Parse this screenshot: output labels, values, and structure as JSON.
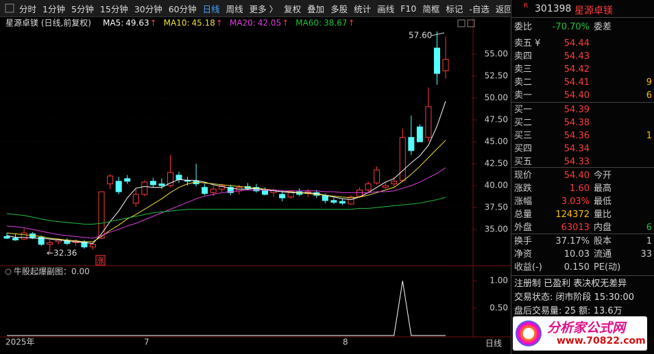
{
  "toolbar": {
    "items": [
      "分时",
      "1分钟",
      "5分钟",
      "15分钟",
      "30分钟",
      "60分钟",
      "日线",
      "周线",
      "更多 〉",
      "复权",
      "叠加",
      "多股",
      "统计",
      "画线",
      "F10",
      "简框",
      "标记",
      "-自选",
      "返回"
    ],
    "active": 6
  },
  "main_chart": {
    "title": "星源卓镁 (日线,前复权)",
    "ma": [
      {
        "label": "MA5:",
        "value": "49.63",
        "arrow": "↑",
        "color": "#ffffff",
        "values": [
          34.3,
          34.1,
          34.1,
          34.0,
          34.0,
          33.9,
          33.8,
          33.7,
          33.6,
          33.5,
          33.4,
          34.5,
          35.9,
          37.1,
          38.6,
          39.7,
          39.9,
          39.8,
          39.8,
          40.3,
          40.7,
          40.6,
          40.6,
          40.4,
          40.1,
          39.9,
          39.7,
          39.6,
          39.6,
          39.7,
          39.5,
          39.4,
          39.3,
          39.2,
          39.2,
          39.2,
          39.1,
          38.9,
          38.7,
          38.5,
          38.4,
          38.7,
          39.2,
          39.8,
          40.4,
          40.8,
          41.7,
          42.6,
          43.4,
          44.6,
          46.8,
          49.63
        ]
      },
      {
        "label": "MA10:",
        "value": "45.18",
        "arrow": "↑",
        "color": "#f0e040",
        "values": [
          34.6,
          34.5,
          34.4,
          34.3,
          34.2,
          34.0,
          33.9,
          33.8,
          33.7,
          33.6,
          33.6,
          34.2,
          34.9,
          35.5,
          36.2,
          36.7,
          37.3,
          37.9,
          38.5,
          39.2,
          39.8,
          40.2,
          40.4,
          40.3,
          40.2,
          40.1,
          40.0,
          39.9,
          39.8,
          39.7,
          39.6,
          39.5,
          39.4,
          39.3,
          39.2,
          39.1,
          39.0,
          38.9,
          38.8,
          38.7,
          38.6,
          38.7,
          38.9,
          39.2,
          39.5,
          39.8,
          40.5,
          41.3,
          42.2,
          43.2,
          44.2,
          45.18
        ]
      },
      {
        "label": "MA20:",
        "value": "42.05",
        "arrow": "↑",
        "color": "#e040e0",
        "values": [
          35.4,
          35.3,
          35.2,
          35.0,
          34.8,
          34.6,
          34.4,
          34.3,
          34.2,
          34.1,
          34.0,
          34.3,
          34.7,
          35.0,
          35.4,
          35.7,
          36.1,
          36.5,
          36.9,
          37.3,
          37.7,
          38.1,
          38.5,
          38.8,
          39.0,
          39.2,
          39.3,
          39.4,
          39.5,
          39.5,
          39.5,
          39.5,
          39.4,
          39.4,
          39.4,
          39.4,
          39.4,
          39.3,
          39.3,
          39.2,
          39.2,
          39.2,
          39.2,
          39.3,
          39.3,
          39.4,
          39.7,
          40.0,
          40.4,
          40.9,
          41.4,
          42.05
        ]
      },
      {
        "label": "MA60:",
        "value": "38.67",
        "arrow": "↑",
        "color": "#20c040",
        "values": [
          36.8,
          36.7,
          36.6,
          36.4,
          36.2,
          36.0,
          35.9,
          35.8,
          35.7,
          35.6,
          35.6,
          35.7,
          35.9,
          36.1,
          36.3,
          36.5,
          36.7,
          36.9,
          37.0,
          37.1,
          37.2,
          37.3,
          37.3,
          37.3,
          37.3,
          37.3,
          37.3,
          37.3,
          37.3,
          37.3,
          37.3,
          37.3,
          37.3,
          37.3,
          37.3,
          37.3,
          37.3,
          37.3,
          37.3,
          37.3,
          37.3,
          37.4,
          37.4,
          37.5,
          37.6,
          37.7,
          37.8,
          37.9,
          38.0,
          38.2,
          38.4,
          38.67
        ]
      }
    ],
    "candles": [
      [
        34.2,
        34.6,
        33.9,
        34.0
      ],
      [
        34.0,
        34.5,
        33.7,
        33.8
      ],
      [
        33.9,
        35.1,
        33.8,
        34.6
      ],
      [
        34.5,
        34.7,
        33.9,
        34.1
      ],
      [
        34.1,
        34.3,
        33.1,
        33.3
      ],
      [
        33.3,
        33.8,
        32.36,
        33.5
      ],
      [
        33.6,
        34.0,
        33.3,
        33.8
      ],
      [
        33.7,
        34.0,
        33.2,
        33.4
      ],
      [
        33.5,
        33.9,
        33.1,
        33.7
      ],
      [
        33.6,
        33.8,
        32.8,
        33.0
      ],
      [
        33.0,
        33.5,
        32.7,
        33.3
      ],
      [
        34.0,
        39.3,
        33.9,
        39.3
      ],
      [
        40.2,
        41.3,
        39.6,
        41.1
      ],
      [
        40.5,
        41.0,
        39.0,
        39.3
      ],
      [
        40.8,
        41.2,
        40.2,
        40.5
      ],
      [
        38.0,
        39.6,
        37.6,
        39.0
      ],
      [
        39.0,
        40.6,
        38.8,
        40.4
      ],
      [
        40.5,
        40.9,
        39.8,
        40.1
      ],
      [
        40.2,
        40.8,
        39.6,
        40.0
      ],
      [
        40.0,
        43.5,
        39.8,
        41.5
      ],
      [
        41.2,
        41.6,
        40.3,
        40.7
      ],
      [
        40.6,
        41.0,
        40.0,
        40.5
      ],
      [
        40.5,
        42.5,
        39.9,
        40.2
      ],
      [
        39.8,
        40.2,
        38.9,
        39.1
      ],
      [
        39.2,
        40.0,
        38.8,
        39.6
      ],
      [
        39.6,
        40.2,
        39.3,
        40.0
      ],
      [
        39.8,
        40.1,
        38.9,
        39.2
      ],
      [
        39.4,
        40.1,
        39.0,
        39.8
      ],
      [
        39.9,
        40.3,
        39.5,
        39.7
      ],
      [
        39.8,
        40.2,
        39.2,
        39.4
      ],
      [
        39.4,
        39.8,
        38.9,
        39.0
      ],
      [
        39.2,
        39.7,
        38.7,
        39.5
      ],
      [
        39.0,
        39.4,
        38.2,
        38.6
      ],
      [
        38.7,
        39.5,
        38.5,
        39.3
      ],
      [
        39.3,
        39.7,
        38.8,
        39.0
      ],
      [
        39.1,
        39.6,
        38.7,
        39.3
      ],
      [
        39.2,
        39.5,
        38.6,
        38.9
      ],
      [
        38.9,
        39.1,
        38.0,
        38.3
      ],
      [
        38.3,
        38.6,
        37.9,
        38.1
      ],
      [
        38.2,
        38.5,
        37.8,
        38.0
      ],
      [
        37.9,
        38.9,
        37.8,
        38.7
      ],
      [
        38.8,
        39.8,
        38.6,
        39.5
      ],
      [
        39.5,
        40.5,
        39.2,
        40.2
      ],
      [
        40.3,
        42.2,
        40.1,
        41.8
      ],
      [
        39.8,
        40.4,
        39.6,
        40.0
      ],
      [
        40.2,
        41.0,
        39.9,
        40.5
      ],
      [
        40.6,
        46.5,
        40.4,
        45.5
      ],
      [
        45.5,
        48.0,
        43.5,
        44.0
      ],
      [
        46.7,
        47.0,
        45.0,
        45.0
      ],
      [
        45.5,
        51.2,
        45.0,
        49.0
      ],
      [
        55.7,
        57.6,
        51.5,
        52.8
      ],
      [
        53.1,
        57.0,
        52.2,
        54.4
      ]
    ],
    "ylim": [
      31.1,
      57.9
    ],
    "yticks": [
      {
        "value": 35,
        "label": "35.00"
      },
      {
        "value": 37.5,
        "label": "37.50"
      },
      {
        "value": 40,
        "label": "40.00"
      },
      {
        "value": 42.5,
        "label": "42.50"
      },
      {
        "value": 45,
        "label": "45.00"
      },
      {
        "value": 47.5,
        "label": "47.50"
      },
      {
        "value": 50,
        "label": "50.00"
      },
      {
        "value": 52.5,
        "label": "52.50"
      },
      {
        "value": 55,
        "label": "55.00"
      }
    ],
    "high_label": {
      "value": 57.6,
      "label": "57.60"
    },
    "low_label": {
      "value": 32.36,
      "label": "←32.36"
    },
    "limit_mark": "涨"
  },
  "sub_chart": {
    "title": "牛股起爆副图：0.00",
    "values": [
      0,
      0,
      0,
      0,
      0,
      0,
      0,
      0,
      0,
      0,
      0,
      0,
      0,
      0,
      0,
      0,
      0,
      0,
      0,
      0,
      0,
      0,
      0,
      0,
      0,
      0,
      0,
      0,
      0,
      0,
      0,
      0,
      0,
      0,
      0,
      0,
      0,
      0,
      0,
      0,
      0,
      0,
      0,
      0,
      0,
      0,
      1,
      0,
      0,
      0,
      0,
      0
    ],
    "ylim": [
      0,
      1.19
    ],
    "yticks": [
      {
        "value": 1,
        "label": "1.00"
      },
      {
        "value": 0.5,
        "label": "0.50"
      }
    ]
  },
  "x_axis": {
    "labels": [
      "2025年",
      "7",
      "8"
    ],
    "period": "日线"
  },
  "quote_panel": {
    "badge": "R",
    "code": "301398",
    "name": "星源卓镁",
    "rows": [
      {
        "cells": [
          "委比",
          "-70.70%",
          "委差",
          ""
        ],
        "colors": [
          "#ccc",
          "#20c040",
          "#ccc",
          "#ccc"
        ]
      },
      {
        "cells": [
          "卖五 ¥",
          "54.44",
          "",
          ""
        ],
        "colors": [
          "#ccc",
          "#ff3c3c",
          "#ccc",
          "#ffc000"
        ]
      },
      {
        "cells": [
          "卖四",
          "54.43",
          "",
          ""
        ],
        "colors": [
          "#ccc",
          "#ff3c3c",
          "#ccc",
          "#ffc000"
        ]
      },
      {
        "cells": [
          "卖三",
          "54.42",
          "",
          ""
        ],
        "colors": [
          "#ccc",
          "#ff3c3c",
          "#ccc",
          "#ffc000"
        ]
      },
      {
        "cells": [
          "卖二",
          "54.41",
          "",
          "9"
        ],
        "colors": [
          "#ccc",
          "#ff3c3c",
          "#ccc",
          "#ffc000"
        ]
      },
      {
        "cells": [
          "卖一",
          "54.40",
          "",
          "6"
        ],
        "colors": [
          "#ccc",
          "#ff3c3c",
          "#ccc",
          "#ffc000"
        ]
      },
      {
        "cells": [
          "买一",
          "54.39",
          "",
          ""
        ],
        "colors": [
          "#ccc",
          "#ff3c3c",
          "#ccc",
          "#ffc000"
        ]
      },
      {
        "cells": [
          "买二",
          "54.38",
          "",
          ""
        ],
        "colors": [
          "#ccc",
          "#ff3c3c",
          "#ccc",
          "#ffc000"
        ]
      },
      {
        "cells": [
          "买三",
          "54.36",
          "",
          "1"
        ],
        "colors": [
          "#ccc",
          "#ff3c3c",
          "#ccc",
          "#ffc000"
        ]
      },
      {
        "cells": [
          "买四",
          "54.34",
          "",
          ""
        ],
        "colors": [
          "#ccc",
          "#ff3c3c",
          "#ccc",
          "#ffc000"
        ]
      },
      {
        "cells": [
          "买五",
          "54.33",
          "",
          ""
        ],
        "colors": [
          "#ccc",
          "#ff3c3c",
          "#ccc",
          "#ffc000"
        ]
      },
      {
        "cells": [
          "现价",
          "54.40",
          "今开",
          ""
        ],
        "colors": [
          "#ccc",
          "#ff3c3c",
          "#ccc",
          "#ff3c3c"
        ]
      },
      {
        "cells": [
          "涨跌",
          "1.60",
          "最高",
          ""
        ],
        "colors": [
          "#ccc",
          "#ff3c3c",
          "#ccc",
          "#ff3c3c"
        ]
      },
      {
        "cells": [
          "涨幅",
          "3.03%",
          "最低",
          ""
        ],
        "colors": [
          "#ccc",
          "#ff3c3c",
          "#ccc",
          "#ff3c3c"
        ]
      },
      {
        "cells": [
          "总量",
          "124372",
          "量比",
          ""
        ],
        "colors": [
          "#ccc",
          "#ffc000",
          "#ccc",
          "#ccc"
        ]
      },
      {
        "cells": [
          "外盘",
          "63013",
          "内盘",
          "6"
        ],
        "colors": [
          "#ccc",
          "#ff3c3c",
          "#ccc",
          "#20c040"
        ]
      },
      {
        "cells": [
          "换手",
          "37.17%",
          "股本",
          "1"
        ],
        "colors": [
          "#ccc",
          "#ccc",
          "#ccc",
          "#ccc"
        ]
      },
      {
        "cells": [
          "净资",
          "10.03",
          "流通",
          "33"
        ],
        "colors": [
          "#ccc",
          "#ccc",
          "#ccc",
          "#ccc"
        ]
      },
      {
        "cells": [
          "收益(-)",
          "0.150",
          "PE(动)",
          ""
        ],
        "colors": [
          "#ccc",
          "#ccc",
          "#ccc",
          "#ccc"
        ]
      }
    ],
    "tags": "注册制 已盈利 表决权无差异",
    "status": "交易状态: 闭市阶段 15:30:00",
    "after_hours": "盘后交易量: 25  额: 13.6万"
  },
  "logo": {
    "title": "分析家公式网",
    "url": "www.70822.com"
  }
}
